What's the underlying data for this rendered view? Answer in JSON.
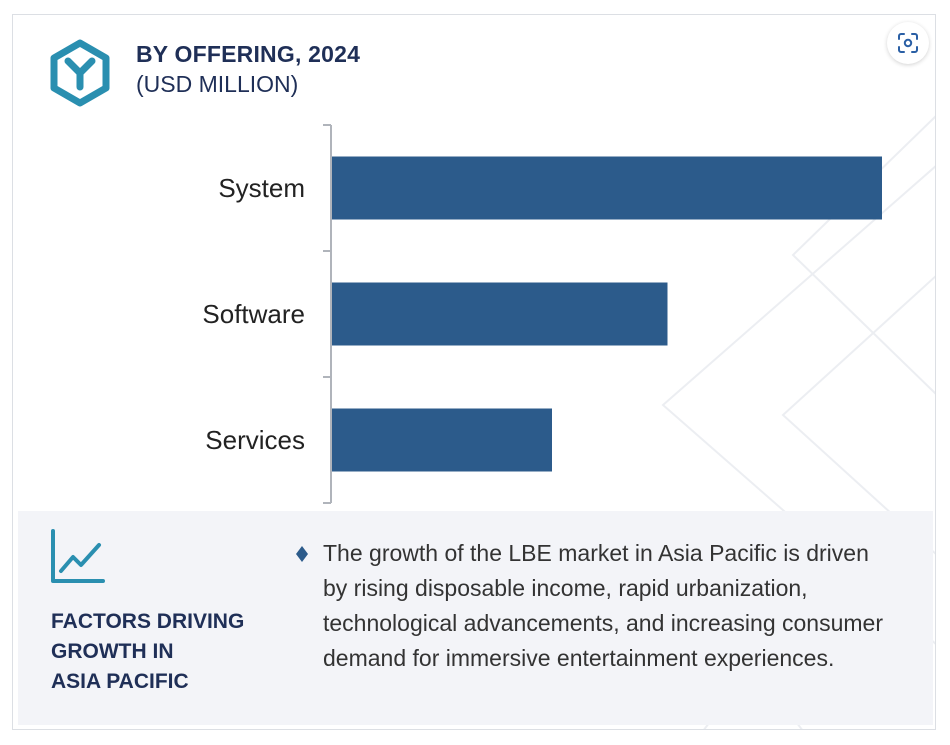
{
  "header": {
    "title": "BY OFFERING, 2024",
    "subtitle": "(USD MILLION)",
    "logo_icon": "hexagon-y-logo-icon",
    "scan_button_icon": "scan-focus-icon"
  },
  "colors": {
    "bar": "#2c5b8b",
    "title": "#1f2f57",
    "accent": "#2a8fb0",
    "panel": "#f3f4f8"
  },
  "chart_data": {
    "type": "bar",
    "orientation": "horizontal",
    "categories": [
      "System",
      "Software",
      "Services"
    ],
    "values": [
      100,
      61,
      40
    ],
    "title": "BY OFFERING, 2024",
    "subtitle": "(USD MILLION)",
    "xlabel": "",
    "ylabel": "",
    "xlim": [
      0,
      100
    ],
    "grid": false,
    "legend": "none"
  },
  "factors": {
    "icon": "trend-line-chart-icon",
    "title_lines": [
      "FACTORS DRIVING",
      "GROWTH IN",
      "ASIA PACIFIC"
    ],
    "bullet_icon": "diamond-bullet-icon",
    "description": "The growth of the LBE market in Asia Pacific is driven by rising disposable income, rapid urbanization, technological advancements, and increasing consumer demand for immersive entertainment experiences."
  }
}
